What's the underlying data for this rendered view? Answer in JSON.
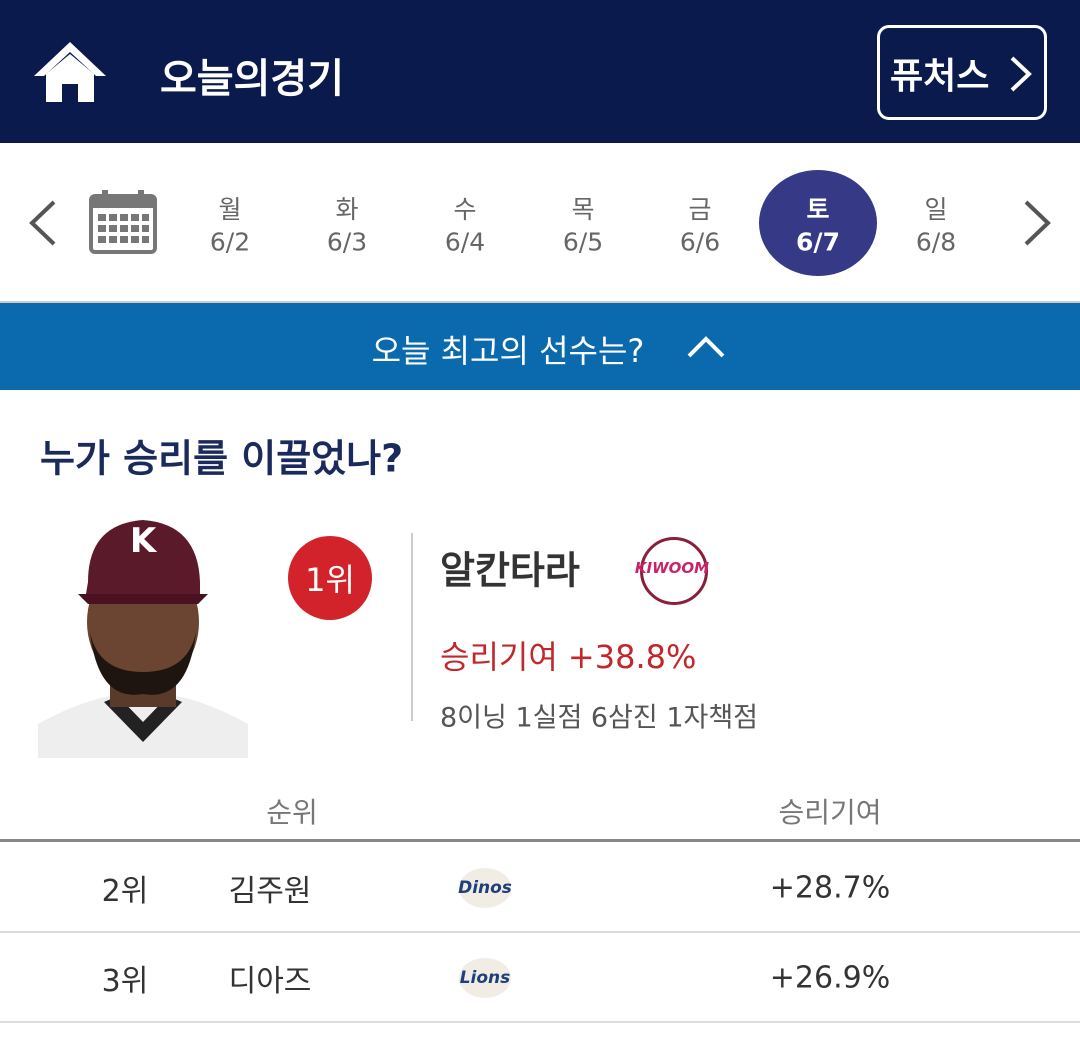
{
  "header": {
    "title": "오늘의경기",
    "futures_button": "퓨처스"
  },
  "date_bar": {
    "days": [
      {
        "weekday": "월",
        "date": "6/2"
      },
      {
        "weekday": "화",
        "date": "6/3"
      },
      {
        "weekday": "수",
        "date": "6/4"
      },
      {
        "weekday": "목",
        "date": "6/5"
      },
      {
        "weekday": "금",
        "date": "6/6"
      },
      {
        "weekday": "토",
        "date": "6/7",
        "selected": true
      },
      {
        "weekday": "일",
        "date": "6/8"
      }
    ]
  },
  "banner": {
    "text": "오늘 최고의 선수는?"
  },
  "section": {
    "title": "누가 승리를 이끌었나?"
  },
  "top_player": {
    "rank": "1위",
    "name": "알칸타라",
    "team_logo": "KIWOOM",
    "contribution": "승리기여 +38.8%",
    "stats": "8이닝 1실점 6삼진 1자책점"
  },
  "table": {
    "headers": [
      "순위",
      "승리기여"
    ],
    "rows": [
      {
        "rank": "2위",
        "name": "김주원",
        "team_logo": "Dinos",
        "contribution": "+28.7%"
      },
      {
        "rank": "3위",
        "name": "디아즈",
        "team_logo": "Lions",
        "contribution": "+26.9%"
      }
    ]
  }
}
